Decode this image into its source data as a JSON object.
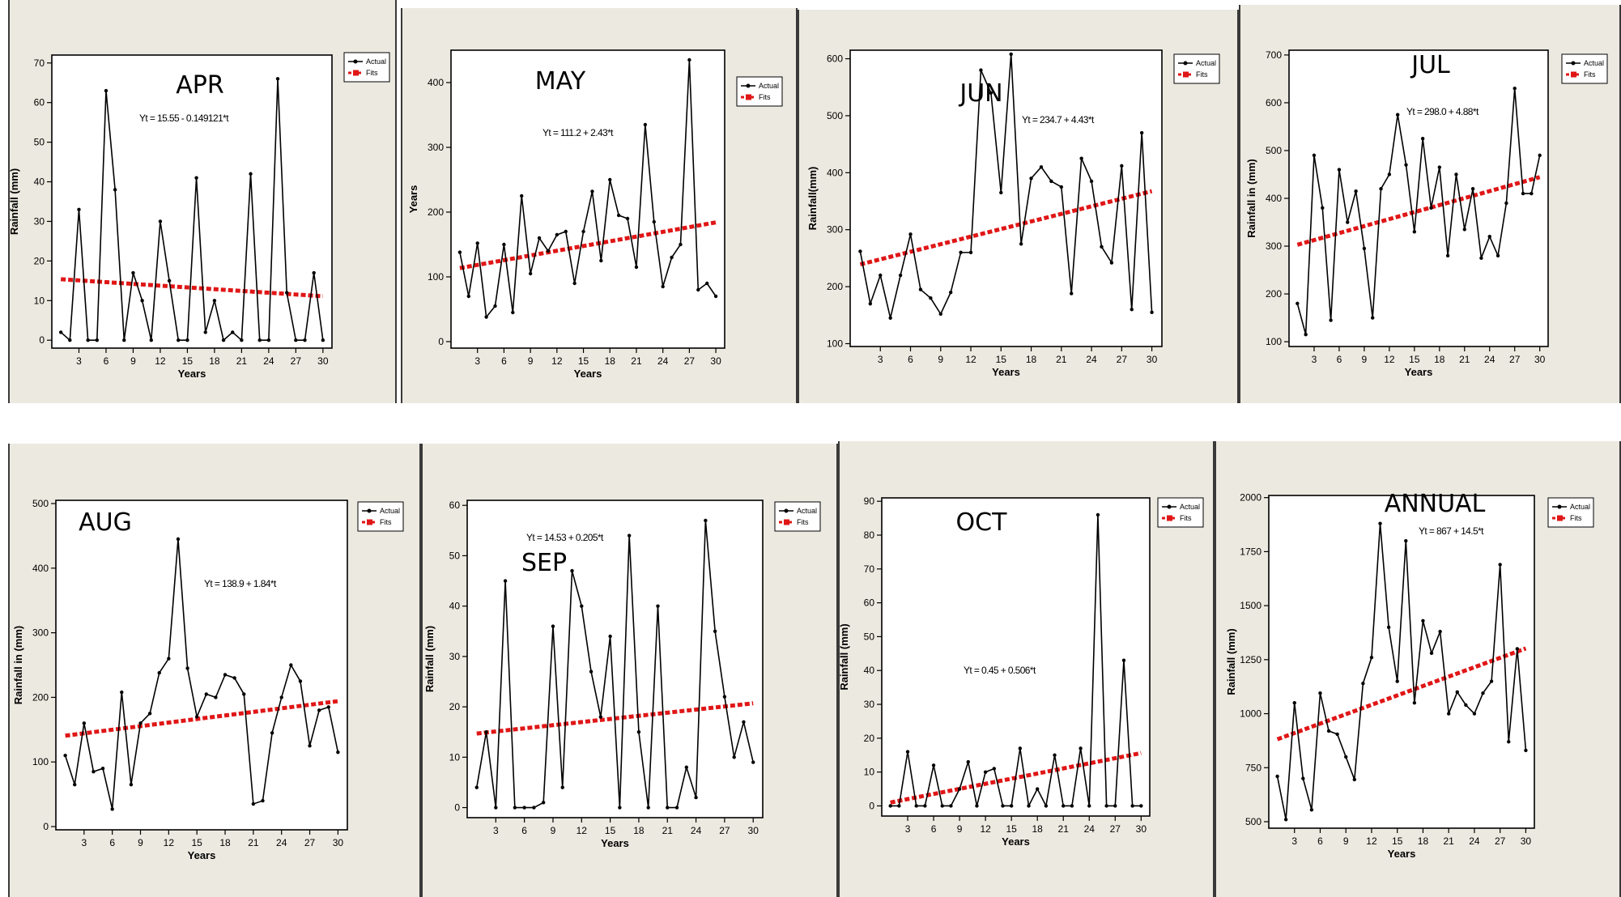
{
  "chart_data": [
    {
      "type": "line",
      "title": "APR",
      "equation": "Yt = 15.55 - 0.149121*t",
      "xlabel": "Years",
      "ylabel": "Rainfall (mm)",
      "xlim": [
        0,
        31
      ],
      "ylim": [
        -2,
        72
      ],
      "xticks": [
        3,
        6,
        9,
        12,
        15,
        18,
        21,
        24,
        27,
        30
      ],
      "yticks": [
        0,
        10,
        20,
        30,
        40,
        50,
        60,
        70
      ],
      "legend": [
        "Actual",
        "Fits"
      ],
      "series": [
        {
          "name": "Actual",
          "x": [
            1,
            2,
            3,
            4,
            5,
            6,
            7,
            8,
            9,
            10,
            11,
            12,
            13,
            14,
            15,
            16,
            17,
            18,
            19,
            20,
            21,
            22,
            23,
            24,
            25,
            26,
            27,
            28,
            29,
            30
          ],
          "values": [
            2,
            0,
            33,
            0,
            0,
            63,
            38,
            0,
            17,
            10,
            0,
            30,
            15,
            0,
            0,
            41,
            2,
            10,
            0,
            2,
            0,
            42,
            0,
            0,
            66,
            12,
            0,
            0,
            17,
            0
          ]
        },
        {
          "name": "Fits",
          "x": [
            1,
            30
          ],
          "values": [
            15.4,
            11.1
          ]
        }
      ]
    },
    {
      "type": "line",
      "title": "MAY",
      "equation": "Yt = 111.2 + 2.43*t",
      "xlabel": "Years",
      "ylabel": "Years",
      "xlim": [
        0,
        31
      ],
      "ylim": [
        -10,
        450
      ],
      "xticks": [
        3,
        6,
        9,
        12,
        15,
        18,
        21,
        24,
        27,
        30
      ],
      "yticks": [
        0,
        100,
        200,
        300,
        400
      ],
      "legend": [
        "Actual",
        "Fits"
      ],
      "series": [
        {
          "name": "Actual",
          "x": [
            1,
            2,
            3,
            4,
            5,
            6,
            7,
            8,
            9,
            10,
            11,
            12,
            13,
            14,
            15,
            16,
            17,
            18,
            19,
            20,
            21,
            22,
            23,
            24,
            25,
            26,
            27,
            28,
            29,
            30
          ],
          "values": [
            138,
            70,
            152,
            38,
            55,
            150,
            45,
            225,
            105,
            160,
            140,
            165,
            170,
            90,
            170,
            232,
            125,
            250,
            195,
            190,
            115,
            335,
            185,
            85,
            130,
            150,
            435,
            80,
            90,
            70
          ]
        },
        {
          "name": "Fits",
          "x": [
            1,
            30
          ],
          "values": [
            113.6,
            184.1
          ]
        }
      ]
    },
    {
      "type": "line",
      "title": "JUN",
      "equation": "Yt = 234.7 + 4.43*t",
      "xlabel": "Years",
      "ylabel": "Rainfall(mm)",
      "xlim": [
        0,
        31
      ],
      "ylim": [
        95,
        615
      ],
      "xticks": [
        3,
        6,
        9,
        12,
        15,
        18,
        21,
        24,
        27,
        30
      ],
      "yticks": [
        100,
        200,
        300,
        400,
        500,
        600
      ],
      "legend": [
        "Actual",
        "Fits"
      ],
      "series": [
        {
          "name": "Actual",
          "x": [
            1,
            2,
            3,
            4,
            5,
            6,
            7,
            8,
            9,
            10,
            11,
            12,
            13,
            14,
            15,
            16,
            17,
            18,
            19,
            20,
            21,
            22,
            23,
            24,
            25,
            26,
            27,
            28,
            29,
            30
          ],
          "values": [
            262,
            170,
            220,
            145,
            220,
            292,
            195,
            180,
            152,
            190,
            260,
            260,
            580,
            540,
            365,
            608,
            275,
            390,
            410,
            385,
            375,
            188,
            425,
            385,
            270,
            242,
            412,
            160,
            470,
            155
          ]
        },
        {
          "name": "Fits",
          "x": [
            1,
            30
          ],
          "values": [
            239.1,
            367.6
          ]
        }
      ]
    },
    {
      "type": "line",
      "title": "JUL",
      "equation": "Yt = 298.0 + 4.88*t",
      "xlabel": "Years",
      "ylabel": "Rainfall in (mm)",
      "xlim": [
        0,
        31
      ],
      "ylim": [
        90,
        710
      ],
      "xticks": [
        3,
        6,
        9,
        12,
        15,
        18,
        21,
        24,
        27,
        30
      ],
      "yticks": [
        100,
        200,
        300,
        400,
        500,
        600,
        700
      ],
      "legend": [
        "Actual",
        "Fits"
      ],
      "series": [
        {
          "name": "Actual",
          "x": [
            1,
            2,
            3,
            4,
            5,
            6,
            7,
            8,
            9,
            10,
            11,
            12,
            13,
            14,
            15,
            16,
            17,
            18,
            19,
            20,
            21,
            22,
            23,
            24,
            25,
            26,
            27,
            28,
            29,
            30
          ],
          "values": [
            180,
            115,
            490,
            380,
            145,
            460,
            350,
            415,
            295,
            150,
            420,
            450,
            575,
            470,
            330,
            525,
            380,
            465,
            280,
            450,
            335,
            420,
            275,
            320,
            280,
            390,
            630,
            410,
            410,
            490
          ]
        },
        {
          "name": "Fits",
          "x": [
            1,
            30
          ],
          "values": [
            302.9,
            444.4
          ]
        }
      ]
    },
    {
      "type": "line",
      "title": "AUG",
      "equation": "Yt = 138.9 + 1.84*t",
      "xlabel": "Years",
      "ylabel": "Rainfall in (mm)",
      "xlim": [
        0,
        31
      ],
      "ylim": [
        -5,
        505
      ],
      "xticks": [
        3,
        6,
        9,
        12,
        15,
        18,
        21,
        24,
        27,
        30
      ],
      "yticks": [
        0,
        100,
        200,
        300,
        400,
        500
      ],
      "legend": [
        "Actual",
        "Fits"
      ],
      "series": [
        {
          "name": "Actual",
          "x": [
            1,
            2,
            3,
            4,
            5,
            6,
            7,
            8,
            9,
            10,
            11,
            12,
            13,
            14,
            15,
            16,
            17,
            18,
            19,
            20,
            21,
            22,
            23,
            24,
            25,
            26,
            27,
            28,
            29,
            30
          ],
          "values": [
            110,
            65,
            160,
            85,
            90,
            27,
            208,
            65,
            160,
            175,
            238,
            260,
            445,
            245,
            170,
            205,
            200,
            235,
            230,
            205,
            35,
            40,
            145,
            200,
            250,
            225,
            125,
            180,
            185,
            115
          ]
        },
        {
          "name": "Fits",
          "x": [
            1,
            30
          ],
          "values": [
            140.7,
            194.1
          ]
        }
      ]
    },
    {
      "type": "line",
      "title": "SEP",
      "equation": "Yt = 14.53 + 0.205*t",
      "xlabel": "Years",
      "ylabel": "Rainfall (mm)",
      "xlim": [
        0,
        31
      ],
      "ylim": [
        -2,
        61
      ],
      "xticks": [
        3,
        6,
        9,
        12,
        15,
        18,
        21,
        24,
        27,
        30
      ],
      "yticks": [
        0,
        10,
        20,
        30,
        40,
        50,
        60
      ],
      "legend": [
        "Actual",
        "Fits"
      ],
      "series": [
        {
          "name": "Actual",
          "x": [
            1,
            2,
            3,
            4,
            5,
            6,
            7,
            8,
            9,
            10,
            11,
            12,
            13,
            14,
            15,
            16,
            17,
            18,
            19,
            20,
            21,
            22,
            23,
            24,
            25,
            26,
            27,
            28,
            29,
            30
          ],
          "values": [
            4,
            15,
            0,
            45,
            0,
            0,
            0,
            1,
            36,
            4,
            47,
            40,
            27,
            18,
            34,
            0,
            54,
            15,
            0,
            40,
            0,
            0,
            8,
            2,
            57,
            35,
            22,
            10,
            17,
            9
          ]
        },
        {
          "name": "Fits",
          "x": [
            1,
            30
          ],
          "values": [
            14.7,
            20.7
          ]
        }
      ]
    },
    {
      "type": "line",
      "title": "OCT",
      "equation": "Yt = 0.45 + 0.506*t",
      "xlabel": "Years",
      "ylabel": "Rainfall (mm)",
      "xlim": [
        0,
        31
      ],
      "ylim": [
        -3,
        91
      ],
      "xticks": [
        3,
        6,
        9,
        12,
        15,
        18,
        21,
        24,
        27,
        30
      ],
      "yticks": [
        0,
        10,
        20,
        30,
        40,
        50,
        60,
        70,
        80,
        90
      ],
      "legend": [
        "Actual",
        "Fits"
      ],
      "series": [
        {
          "name": "Actual",
          "x": [
            1,
            2,
            3,
            4,
            5,
            6,
            7,
            8,
            9,
            10,
            11,
            12,
            13,
            14,
            15,
            16,
            17,
            18,
            19,
            20,
            21,
            22,
            23,
            24,
            25,
            26,
            27,
            28,
            29,
            30
          ],
          "values": [
            0,
            0,
            16,
            0,
            0,
            12,
            0,
            0,
            5,
            13,
            0,
            10,
            11,
            0,
            0,
            17,
            0,
            5,
            0,
            15,
            0,
            0,
            17,
            0,
            86,
            0,
            0,
            43,
            0,
            0
          ]
        },
        {
          "name": "Fits",
          "x": [
            1,
            30
          ],
          "values": [
            1.0,
            15.6
          ]
        }
      ]
    },
    {
      "type": "line",
      "title": "ANNUAL",
      "equation": "Yt = 867 + 14.5*t",
      "xlabel": "Years",
      "ylabel": "Rainfall (mm)",
      "xlim": [
        0,
        31
      ],
      "ylim": [
        470,
        2010
      ],
      "xticks": [
        3,
        6,
        9,
        12,
        15,
        18,
        21,
        24,
        27,
        30
      ],
      "yticks": [
        500,
        750,
        1000,
        1250,
        1500,
        1750,
        2000
      ],
      "legend": [
        "Actual",
        "Fits"
      ],
      "series": [
        {
          "name": "Actual",
          "x": [
            1,
            2,
            3,
            4,
            5,
            6,
            7,
            8,
            9,
            10,
            11,
            12,
            13,
            14,
            15,
            16,
            17,
            18,
            19,
            20,
            21,
            22,
            23,
            24,
            25,
            26,
            27,
            28,
            29,
            30
          ],
          "values": [
            710,
            510,
            1050,
            700,
            555,
            1095,
            920,
            905,
            800,
            695,
            1140,
            1260,
            1880,
            1400,
            1150,
            1800,
            1050,
            1430,
            1280,
            1380,
            1000,
            1100,
            1040,
            1000,
            1095,
            1150,
            1690,
            870,
            1300,
            830
          ]
        },
        {
          "name": "Fits",
          "x": [
            1,
            30
          ],
          "values": [
            881.5,
            1302
          ]
        }
      ]
    }
  ],
  "panels": [
    {
      "title": "APR",
      "equation": "Yt = 15.55 - 0.149121*t",
      "xlabel": "Years",
      "ylabel": "Rainfall (mm)",
      "legend_actual": "Actual",
      "legend_fits": "Fits"
    },
    {
      "title": "MAY",
      "equation": "Yt = 111.2 + 2.43*t",
      "xlabel": "Years",
      "ylabel": "Years",
      "legend_actual": "Actual",
      "legend_fits": "Fits"
    },
    {
      "title": "JUN",
      "equation": "Yt = 234.7 + 4.43*t",
      "xlabel": "Years",
      "ylabel": "Rainfall(mm)",
      "legend_actual": "Actual",
      "legend_fits": "Fits"
    },
    {
      "title": "JUL",
      "equation": "Yt = 298.0 + 4.88*t",
      "xlabel": "Years",
      "ylabel": "Rainfall in (mm)",
      "legend_actual": "Actual",
      "legend_fits": "Fits"
    },
    {
      "title": "AUG",
      "equation": "Yt = 138.9 + 1.84*t",
      "xlabel": "Years",
      "ylabel": "Rainfall in (mm)",
      "legend_actual": "Actual",
      "legend_fits": "Fits"
    },
    {
      "title": "SEP",
      "equation": "Yt = 14.53 + 0.205*t",
      "xlabel": "Years",
      "ylabel": "Rainfall (mm)",
      "legend_actual": "Actual",
      "legend_fits": "Fits"
    },
    {
      "title": "OCT",
      "equation": "Yt = 0.45 + 0.506*t",
      "xlabel": "Years",
      "ylabel": "Rainfall (mm)",
      "legend_actual": "Actual",
      "legend_fits": "Fits"
    },
    {
      "title": "ANNUAL",
      "equation": "Yt = 867 + 14.5*t",
      "xlabel": "Years",
      "ylabel": "Rainfall (mm)",
      "legend_actual": "Actual",
      "legend_fits": "Fits"
    }
  ],
  "colors": {
    "actual": "#000000",
    "fits": "#e01616",
    "panel_background": "#ece9e0",
    "plot_background": "#ffffff"
  }
}
